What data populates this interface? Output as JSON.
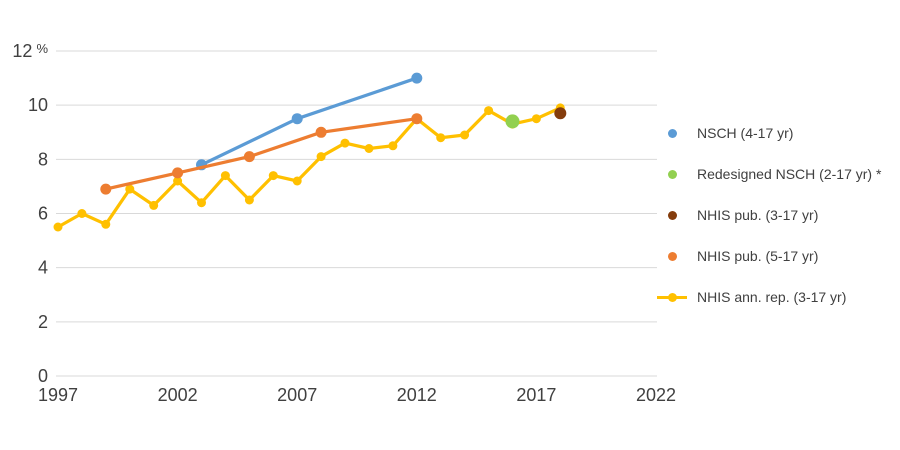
{
  "colors": {
    "background": "#FFFFFF",
    "gridline": "#D9D9D9",
    "text": "#404040"
  },
  "chart_data": {
    "type": "line",
    "title": "",
    "xlabel": "",
    "ylabel": "%",
    "unit_label": "%",
    "xlim": [
      1997,
      2022
    ],
    "ylim": [
      0,
      12
    ],
    "x_ticks": [
      1997,
      2002,
      2007,
      2012,
      2017,
      2022
    ],
    "y_ticks": [
      0,
      2,
      4,
      6,
      8,
      10,
      12
    ],
    "grid": "horizontal",
    "legend_position": "right",
    "series": [
      {
        "name": "NSCH (4-17 yr)",
        "color": "#5B9BD5",
        "style": "line-markers",
        "marker_radius": 5.5,
        "points": [
          [
            2003,
            7.8
          ],
          [
            2007,
            9.5
          ],
          [
            2012,
            11.0
          ]
        ]
      },
      {
        "name": "Redesigned NSCH (2-17 yr) *",
        "color": "#92D050",
        "style": "marker-only",
        "marker_radius": 7,
        "points": [
          [
            2016,
            9.4
          ]
        ]
      },
      {
        "name": "NHIS pub. (3-17 yr)",
        "color": "#843C0C",
        "style": "marker-only",
        "marker_radius": 6,
        "points": [
          [
            2018,
            9.7
          ]
        ]
      },
      {
        "name": "NHIS pub. (5-17 yr)",
        "color": "#ED7D31",
        "style": "line-markers",
        "marker_radius": 5.5,
        "points": [
          [
            1999,
            6.9
          ],
          [
            2002,
            7.5
          ],
          [
            2005,
            8.1
          ],
          [
            2008,
            9.0
          ],
          [
            2012,
            9.5
          ]
        ]
      },
      {
        "name": "NHIS ann. rep. (3-17 yr)",
        "color": "#FFC000",
        "style": "line-markers",
        "marker_radius": 4.5,
        "points": [
          [
            1997,
            5.5
          ],
          [
            1998,
            6.0
          ],
          [
            1999,
            5.6
          ],
          [
            2000,
            6.9
          ],
          [
            2001,
            6.3
          ],
          [
            2002,
            7.2
          ],
          [
            2003,
            6.4
          ],
          [
            2004,
            7.4
          ],
          [
            2005,
            6.5
          ],
          [
            2006,
            7.4
          ],
          [
            2007,
            7.2
          ],
          [
            2008,
            8.1
          ],
          [
            2009,
            8.6
          ],
          [
            2010,
            8.4
          ],
          [
            2011,
            8.5
          ],
          [
            2012,
            9.5
          ],
          [
            2013,
            8.8
          ],
          [
            2014,
            8.9
          ],
          [
            2015,
            9.8
          ],
          [
            2016,
            9.3
          ],
          [
            2017,
            9.5
          ],
          [
            2018,
            9.9
          ]
        ]
      }
    ],
    "draw_order": [
      0,
      4,
      3,
      1,
      2
    ]
  }
}
